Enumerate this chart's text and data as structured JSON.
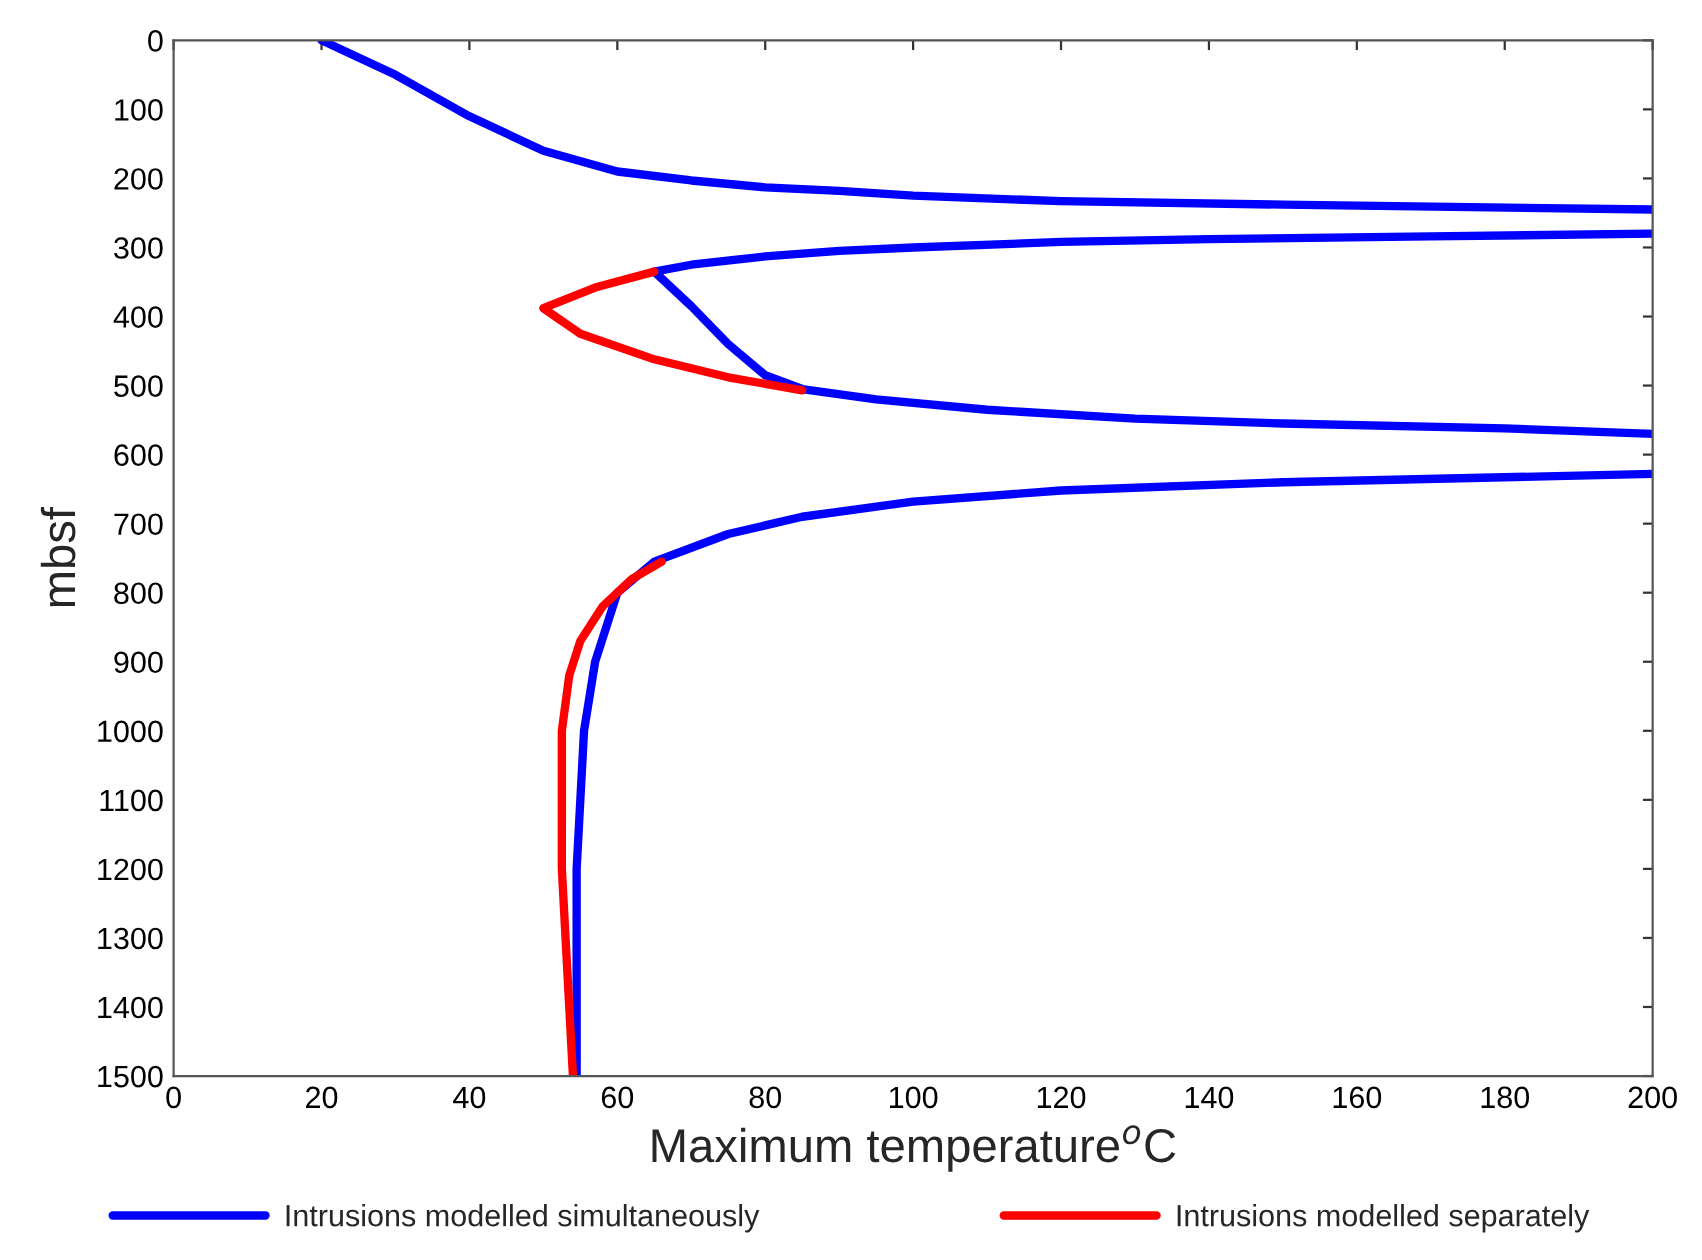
{
  "chart_data": {
    "type": "line",
    "xlabel": "Maximum temperature$^{o}$C",
    "ylabel": "mbsf",
    "xlim": [
      0,
      200
    ],
    "xticks": [
      0,
      20,
      40,
      60,
      80,
      100,
      120,
      140,
      160,
      180,
      200
    ],
    "ylim": [
      1500,
      0
    ],
    "yticks": [
      0,
      100,
      200,
      300,
      400,
      500,
      600,
      700,
      800,
      900,
      1000,
      1100,
      1200,
      1300,
      1400,
      1500
    ],
    "grid": false,
    "legend": "bottom",
    "marker": "none",
    "line_style": "solid",
    "series": [
      {
        "name": "Intrusions modelled simultaneously",
        "color": "#0000ff",
        "x": [
          20,
          30,
          40,
          50,
          60,
          70,
          80,
          90,
          100,
          120,
          150,
          200,
          null,
          200,
          170,
          140,
          120,
          100,
          90,
          80,
          70,
          65,
          70,
          75,
          80,
          85,
          95,
          110,
          130,
          150,
          180,
          200,
          null,
          200,
          150,
          120,
          100,
          85,
          75,
          65,
          60,
          57,
          55.5,
          55,
          54.5,
          54.5
        ],
        "values": [
          0,
          50,
          110,
          160,
          190,
          203,
          213,
          218,
          225,
          233,
          238,
          245,
          null,
          280,
          284,
          288,
          292,
          300,
          305,
          313,
          325,
          335,
          385,
          440,
          485,
          505,
          520,
          535,
          548,
          555,
          562,
          570,
          null,
          628,
          640,
          652,
          668,
          690,
          715,
          755,
          800,
          900,
          1000,
          1100,
          1200,
          1500
        ]
      },
      {
        "name": "Intrusions modelled separately",
        "color": "#ff0000",
        "x": [
          65,
          57,
          50,
          55,
          65,
          75,
          85,
          null,
          66,
          62,
          58,
          55,
          53.5,
          52.5,
          52.5,
          52.5,
          53,
          53.5,
          54
        ],
        "values": [
          335,
          358,
          388,
          425,
          462,
          488,
          507,
          null,
          755,
          780,
          820,
          870,
          920,
          1000,
          1100,
          1200,
          1300,
          1400,
          1500
        ]
      }
    ]
  }
}
